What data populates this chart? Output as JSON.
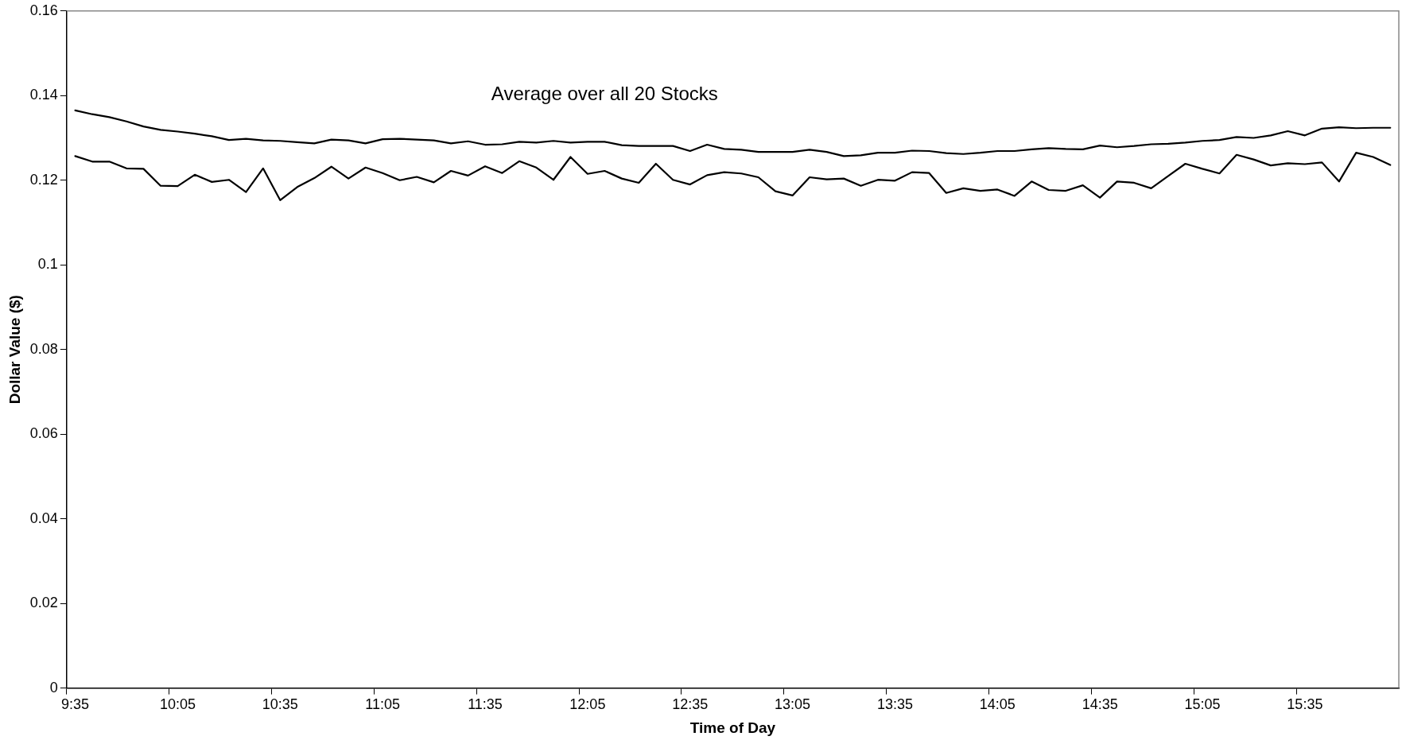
{
  "chart_data": {
    "type": "line",
    "xlabel": "Time of Day",
    "ylabel": "Dollar Value ($)",
    "categories": [
      "9:35",
      null,
      null,
      null,
      null,
      null,
      "10:05",
      null,
      null,
      null,
      null,
      null,
      "10:35",
      null,
      null,
      null,
      null,
      null,
      "11:05",
      null,
      null,
      null,
      null,
      null,
      "11:35",
      null,
      null,
      null,
      null,
      null,
      "12:05",
      null,
      null,
      null,
      null,
      null,
      "12:35",
      null,
      null,
      null,
      null,
      null,
      "13:05",
      null,
      null,
      null,
      null,
      null,
      "13:35",
      null,
      null,
      null,
      null,
      null,
      "14:05",
      null,
      null,
      null,
      null,
      null,
      "14:35",
      null,
      null,
      null,
      null,
      null,
      "15:05",
      null,
      null,
      null,
      null,
      null,
      "15:35",
      null,
      null,
      null,
      null,
      null
    ],
    "series": [
      {
        "name": "Average over all 20 Stocks",
        "color": "#000000",
        "values": [
          0.1365,
          0.1356,
          0.1349,
          0.1339,
          0.1327,
          0.1319,
          0.1315,
          0.131,
          0.1304,
          0.1295,
          0.1298,
          0.1294,
          0.1293,
          0.129,
          0.1287,
          0.1296,
          0.1294,
          0.1287,
          0.1297,
          0.1298,
          0.1296,
          0.1294,
          0.1287,
          0.1292,
          0.1284,
          0.1285,
          0.1291,
          0.1289,
          0.1293,
          0.1289,
          0.1291,
          0.1291,
          0.1283,
          0.1281,
          0.1281,
          0.1281,
          0.1269,
          0.1284,
          0.1274,
          0.1272,
          0.1267,
          0.1267,
          0.1267,
          0.1272,
          0.1267,
          0.1257,
          0.1259,
          0.1265,
          0.1265,
          0.127,
          0.1269,
          0.1264,
          0.1262,
          0.1265,
          0.1269,
          0.1269,
          0.1273,
          0.1276,
          0.1274,
          0.1273,
          0.1282,
          0.1278,
          0.1281,
          0.1285,
          0.1286,
          0.1289,
          0.1293,
          0.1295,
          0.1302,
          0.13,
          0.1306,
          0.1316,
          0.1306,
          0.1322,
          0.1325,
          0.1323,
          0.1324,
          0.1324
        ]
      },
      {
        "color": "#000000",
        "values": [
          0.1257,
          0.1244,
          0.1244,
          0.1228,
          0.1227,
          0.1187,
          0.1186,
          0.1213,
          0.1196,
          0.1201,
          0.1172,
          0.1228,
          0.1153,
          0.1184,
          0.1205,
          0.1232,
          0.1204,
          0.123,
          0.1217,
          0.12,
          0.1208,
          0.1195,
          0.1222,
          0.1211,
          0.1233,
          0.1217,
          0.1245,
          0.123,
          0.1201,
          0.1255,
          0.1215,
          0.1222,
          0.1204,
          0.1194,
          0.1239,
          0.1201,
          0.119,
          0.1212,
          0.1219,
          0.1216,
          0.1207,
          0.1174,
          0.1164,
          0.1207,
          0.1202,
          0.1204,
          0.1187,
          0.1201,
          0.1199,
          0.1219,
          0.1217,
          0.117,
          0.1181,
          0.1175,
          0.1178,
          0.1163,
          0.1197,
          0.1177,
          0.1175,
          0.1188,
          0.1159,
          0.1197,
          0.1194,
          0.1181,
          0.121,
          0.1239,
          0.1227,
          0.1216,
          0.126,
          0.1249,
          0.1235,
          0.124,
          0.1238,
          0.1242,
          0.1197,
          0.1265,
          0.1255,
          0.1236
        ]
      }
    ],
    "ylim": [
      0,
      0.16
    ],
    "yticks": [
      0,
      0.02,
      0.04,
      0.06,
      0.08,
      0.1,
      0.12,
      0.14,
      0.16
    ],
    "grid": false,
    "legend": false,
    "marker": "none",
    "line_style": "solid"
  }
}
